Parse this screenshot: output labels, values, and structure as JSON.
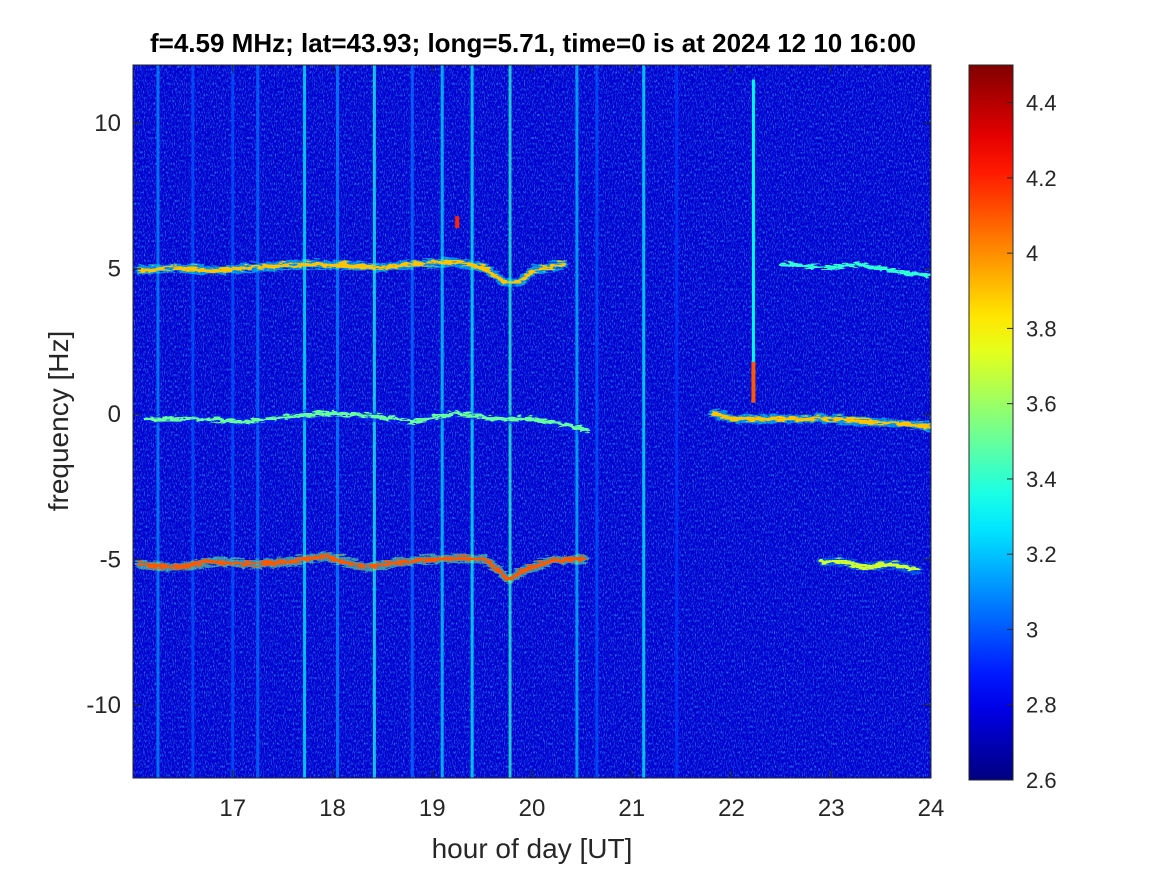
{
  "chart_data": {
    "type": "heatmap",
    "title": "f=4.59 MHz;  lat=43.93; long=5.71, time=0 is at 2024 12 10 16:00",
    "xlabel": "hour of day [UT]",
    "ylabel": "frequency [Hz]",
    "xlim": [
      16,
      24
    ],
    "ylim": [
      -12.5,
      12
    ],
    "x_ticks": [
      17,
      18,
      19,
      20,
      21,
      22,
      23,
      24
    ],
    "y_ticks": [
      10,
      5,
      0,
      -5,
      -10
    ],
    "colormap": "jet",
    "colorbar": {
      "limits": [
        2.6,
        4.5
      ],
      "ticks": [
        "4.4",
        "4.2",
        "4",
        "3.8",
        "3.6",
        "3.4",
        "3.2",
        "3",
        "2.8",
        "2.6"
      ]
    },
    "background_level": 2.75,
    "traces": [
      {
        "name": "",
        "segments": [
          {
            "x": [
              16.05,
              16.4,
              16.8,
              17.2,
              17.6,
              18.0,
              18.4,
              18.8,
              19.2,
              19.5,
              19.7,
              19.85,
              20.0,
              20.3
            ],
            "y": [
              5.0,
              5.1,
              5.0,
              5.1,
              5.2,
              5.2,
              5.1,
              5.2,
              5.3,
              5.1,
              4.6,
              4.6,
              5.0,
              5.2
            ],
            "level": 3.9
          },
          {
            "x": [
              22.5,
              22.9,
              23.3,
              23.6,
              24.0
            ],
            "y": [
              5.2,
              5.1,
              5.2,
              5.0,
              4.8
            ],
            "level": 3.4
          }
        ]
      },
      {
        "name": "",
        "segments": [
          {
            "x": [
              16.1,
              16.6,
              17.1,
              17.6,
              18.0,
              18.4,
              18.8,
              19.2,
              19.6,
              20.0,
              20.3,
              20.55
            ],
            "y": [
              -0.1,
              -0.1,
              -0.2,
              0.0,
              0.1,
              0.0,
              -0.2,
              0.1,
              -0.1,
              -0.1,
              -0.3,
              -0.5
            ],
            "level": 3.5
          },
          {
            "x": [
              21.8,
              22.0,
              22.2,
              22.6,
              23.0,
              23.4,
              23.8,
              24.0
            ],
            "y": [
              0.1,
              -0.1,
              -0.1,
              -0.1,
              -0.1,
              -0.2,
              -0.3,
              -0.4
            ],
            "level": 3.9
          }
        ]
      },
      {
        "name": "",
        "segments": [
          {
            "x": [
              16.05,
              16.4,
              16.8,
              17.2,
              17.6,
              17.9,
              18.3,
              18.7,
              19.1,
              19.5,
              19.75,
              19.9,
              20.15,
              20.5
            ],
            "y": [
              -5.1,
              -5.2,
              -5.0,
              -5.1,
              -5.0,
              -4.8,
              -5.2,
              -5.0,
              -4.9,
              -4.9,
              -5.6,
              -5.3,
              -5.0,
              -4.9
            ],
            "level": 4.1
          },
          {
            "x": [
              22.9,
              23.1,
              23.3,
              23.6,
              23.85
            ],
            "y": [
              -5.0,
              -5.0,
              -5.2,
              -5.1,
              -5.3
            ],
            "level": 3.7
          }
        ]
      }
    ],
    "vertical_stripes": [
      {
        "x": 16.25,
        "level": 3.1
      },
      {
        "x": 16.6,
        "level": 3.0
      },
      {
        "x": 17.0,
        "level": 3.0
      },
      {
        "x": 17.25,
        "level": 3.05
      },
      {
        "x": 17.72,
        "level": 3.3
      },
      {
        "x": 18.05,
        "level": 3.1
      },
      {
        "x": 18.42,
        "level": 3.35
      },
      {
        "x": 18.8,
        "level": 3.05
      },
      {
        "x": 19.1,
        "level": 3.25
      },
      {
        "x": 19.4,
        "level": 3.3
      },
      {
        "x": 19.78,
        "level": 3.4
      },
      {
        "x": 20.45,
        "level": 3.2
      },
      {
        "x": 20.65,
        "level": 3.0
      },
      {
        "x": 21.12,
        "level": 3.3
      },
      {
        "x": 21.45,
        "level": 2.95
      }
    ],
    "spike": {
      "x": 22.22,
      "y_range": [
        0.4,
        11.5
      ],
      "level": 3.3,
      "peak_range": [
        0.4,
        1.8
      ],
      "peak_level": 4.1
    },
    "bright_points": [
      {
        "x": 19.25,
        "y": 6.6,
        "level": 4.2
      }
    ]
  }
}
